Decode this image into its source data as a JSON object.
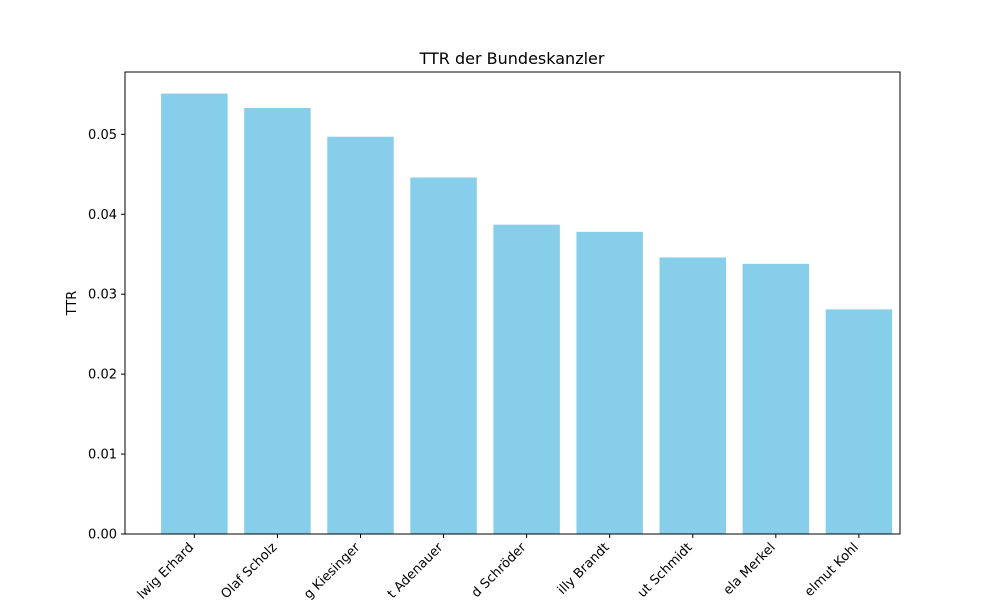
{
  "chart_data": {
    "type": "bar",
    "title": "TTR der Bundeskanzler",
    "xlabel": "",
    "ylabel": "TTR",
    "categories": [
      "Ludwig Erhard",
      "Olaf Scholz",
      "Kurt Georg Kiesinger",
      "Konrad Adenauer",
      "Gerhard Schröder",
      "Willy Brandt",
      "Helmut Schmidt",
      "Angela Merkel",
      "Helmut Kohl"
    ],
    "visible_tick_labels": [
      "lwig Erhard",
      "Olaf Scholz",
      "g Kiesinger",
      "t Adenauer",
      "d Schröder",
      "illy Brandt",
      "ut Schmidt",
      "ela Merkel",
      "elmut Kohl"
    ],
    "values": [
      0.0551,
      0.0533,
      0.0497,
      0.0446,
      0.0387,
      0.0378,
      0.0346,
      0.0338,
      0.0281
    ],
    "ylim": [
      0,
      0.0578
    ],
    "yticks": [
      0.0,
      0.01,
      0.02,
      0.03,
      0.04,
      0.05
    ],
    "ytick_labels": [
      "0.00",
      "0.01",
      "0.02",
      "0.03",
      "0.04",
      "0.05"
    ],
    "grid": false,
    "legend": "none",
    "bar_color": "#87ceeb"
  }
}
